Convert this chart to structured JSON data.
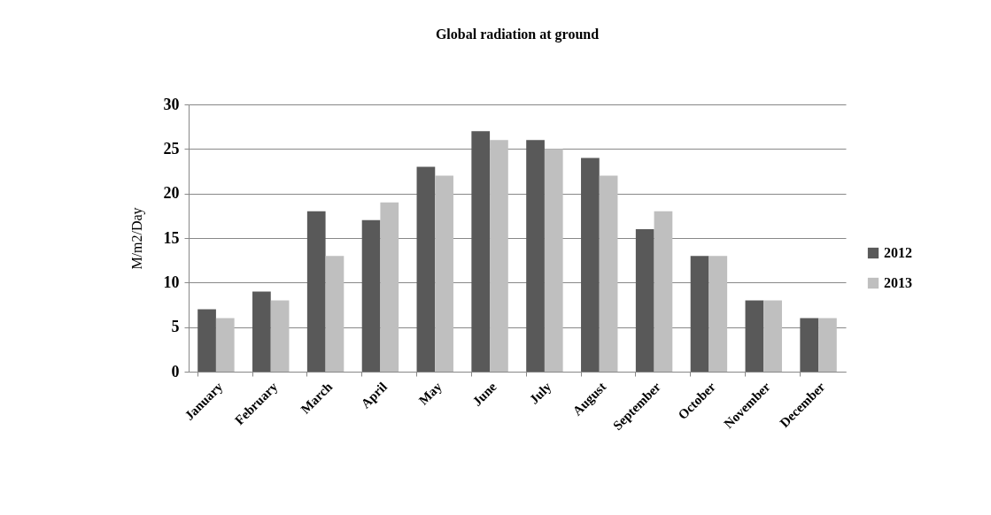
{
  "chart_data": {
    "type": "bar",
    "title": "Global radiation at ground",
    "ylabel": "M/m2/Day",
    "categories": [
      "January",
      "February",
      "March",
      "April",
      "May",
      "June",
      "July",
      "August",
      "September",
      "October",
      "November",
      "December"
    ],
    "series": [
      {
        "name": "2012",
        "color": "#595959",
        "values": [
          7,
          9,
          18,
          17,
          23,
          27,
          26,
          24,
          16,
          13,
          8,
          6
        ]
      },
      {
        "name": "2013",
        "color": "#bfbfbf",
        "values": [
          6,
          8,
          13,
          19,
          22,
          26,
          25,
          22,
          18,
          13,
          8,
          6
        ]
      }
    ],
    "ylim": [
      0,
      30
    ],
    "yticks": [
      0,
      5,
      10,
      15,
      20,
      25,
      30
    ],
    "grid": "y",
    "legend": "right"
  }
}
